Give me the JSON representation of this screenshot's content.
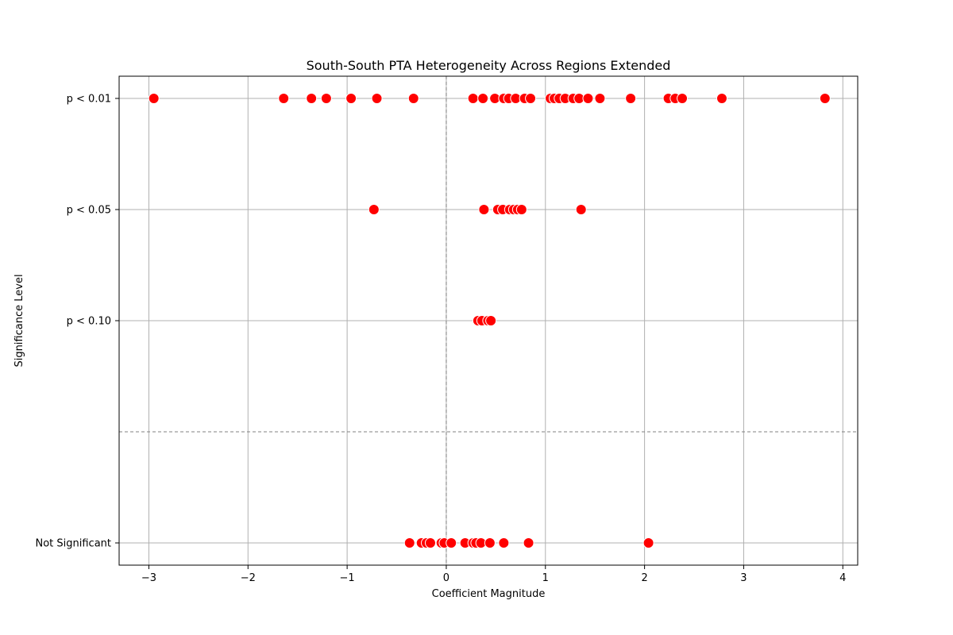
{
  "chart_data": {
    "type": "scatter",
    "title": "South-South PTA Heterogeneity Across Regions Extended",
    "xlabel": "Coefficient Magnitude",
    "ylabel": "Significance Level",
    "xlim": [
      -3.3,
      4.15
    ],
    "x_ticks": [
      -3,
      -2,
      -1,
      0,
      1,
      2,
      3,
      4
    ],
    "x_tick_labels": [
      "−3",
      "−2",
      "−1",
      "0",
      "1",
      "2",
      "3",
      "4"
    ],
    "y_categories": [
      {
        "label": "p < 0.01",
        "value": 3
      },
      {
        "label": "p < 0.05",
        "value": 2
      },
      {
        "label": "p < 0.10",
        "value": 1
      },
      {
        "label": "Not Significant",
        "value": -1
      }
    ],
    "ylim": [
      -1.2,
      3.2
    ],
    "reference_lines": {
      "vertical_x": 0,
      "horizontal_y": 0
    },
    "grid": true,
    "marker_color": "#ff0000",
    "marker_edge_color": "#ffffff",
    "points": {
      "p < 0.01": [
        -2.95,
        -1.64,
        -1.36,
        -1.21,
        -0.96,
        -0.7,
        -0.33,
        0.27,
        0.37,
        0.49,
        0.58,
        0.63,
        0.7,
        0.79,
        0.85,
        1.05,
        1.09,
        1.14,
        1.2,
        1.28,
        1.34,
        1.43,
        1.55,
        1.86,
        2.24,
        2.31,
        2.38,
        2.78,
        3.82
      ],
      "p < 0.05": [
        -0.73,
        0.38,
        0.52,
        0.57,
        0.64,
        0.68,
        0.72,
        0.76,
        1.36
      ],
      "p < 0.10": [
        0.32,
        0.36,
        0.42,
        0.45
      ],
      "Not Significant": [
        -0.37,
        -0.25,
        -0.2,
        -0.16,
        -0.05,
        -0.02,
        0.05,
        0.19,
        0.27,
        0.3,
        0.35,
        0.44,
        0.58,
        0.83,
        2.04
      ]
    }
  }
}
